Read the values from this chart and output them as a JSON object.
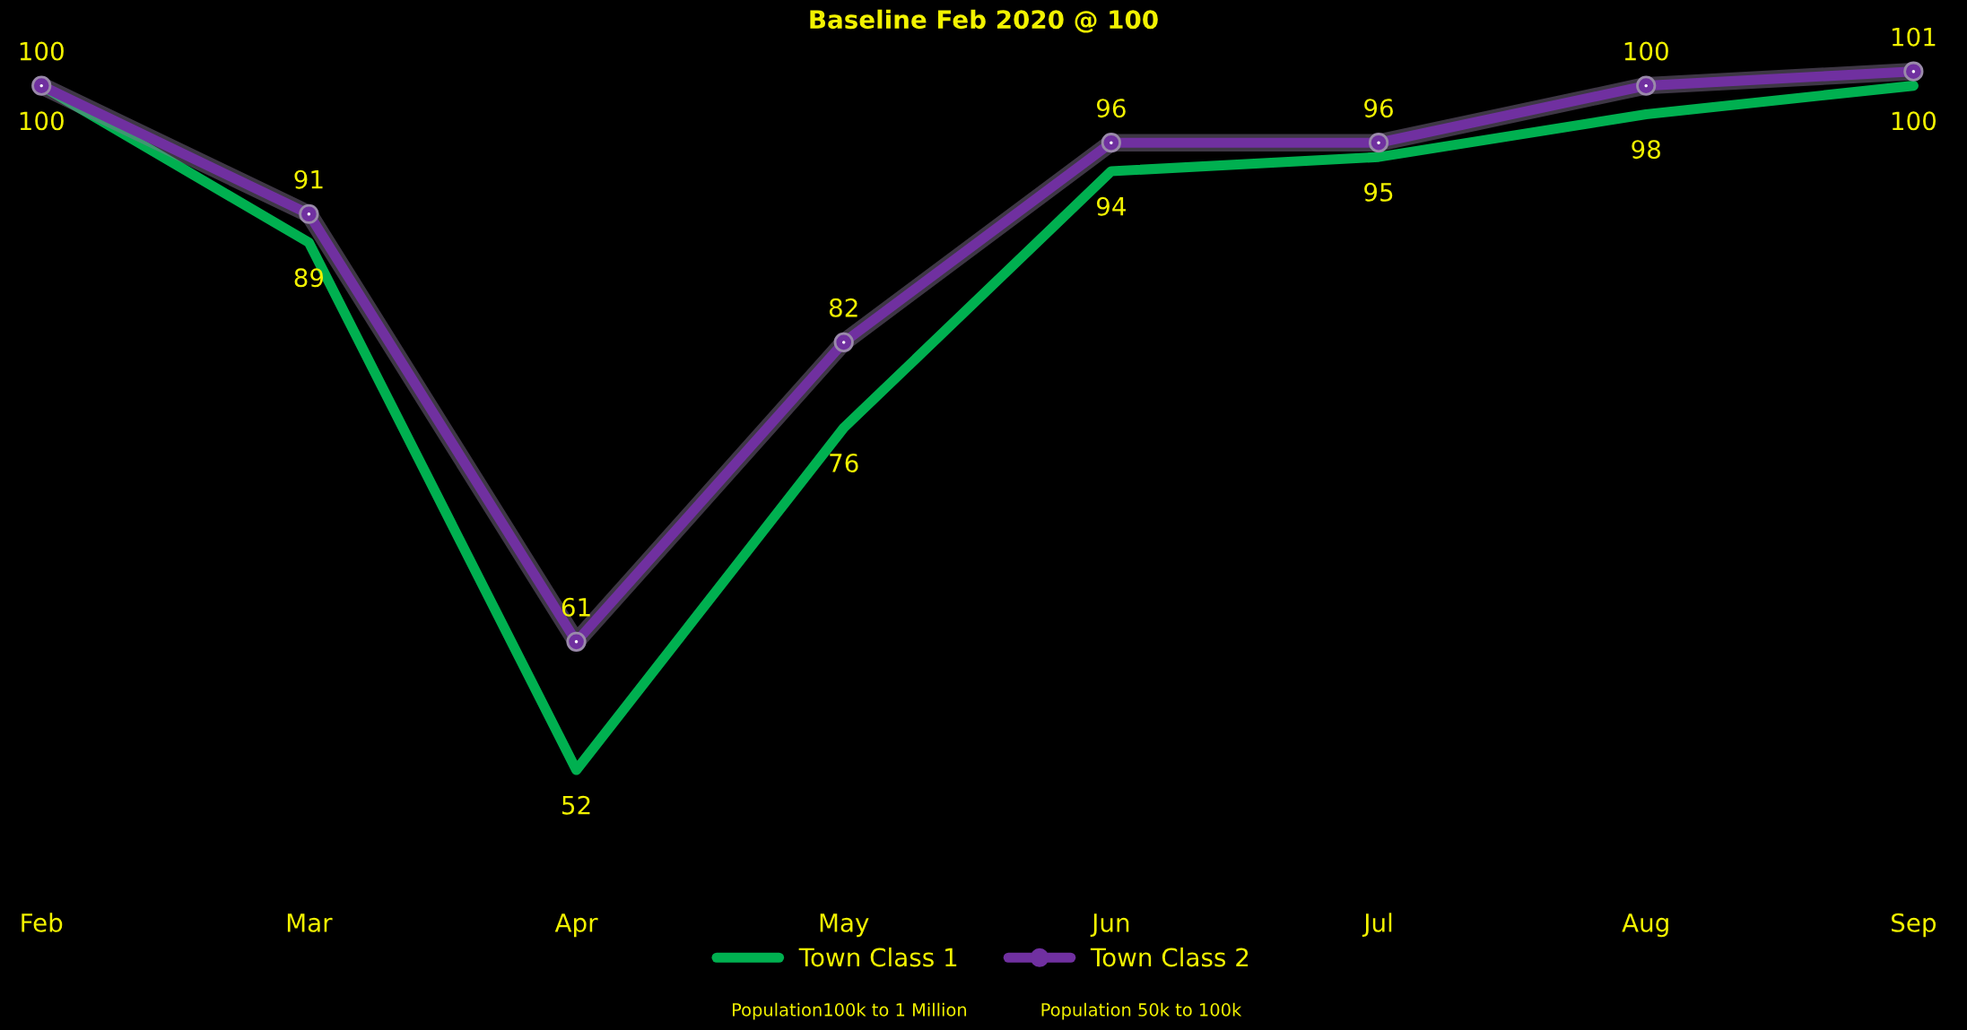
{
  "chart_data": {
    "type": "line",
    "title": "Baseline Feb 2020 @ 100",
    "categories": [
      "Feb",
      "Mar",
      "Apr",
      "May",
      "Jun",
      "Jul",
      "Aug",
      "Sep"
    ],
    "series": [
      {
        "name": "Town Class 1",
        "color": "#00b050",
        "marker": "none",
        "values": [
          100,
          89,
          52,
          76,
          94,
          95,
          98,
          100
        ]
      },
      {
        "name": "Town Class 2",
        "color": "#7030a0",
        "marker": "circle",
        "values": [
          100,
          91,
          61,
          82,
          96,
          96,
          100,
          101
        ]
      }
    ],
    "data_labels": true,
    "relative": false,
    "grid": false,
    "legend": "bottom",
    "tick_labels": "x",
    "annotations": [
      "Population100k to 1 Million",
      "Population 50k to 100k"
    ]
  }
}
